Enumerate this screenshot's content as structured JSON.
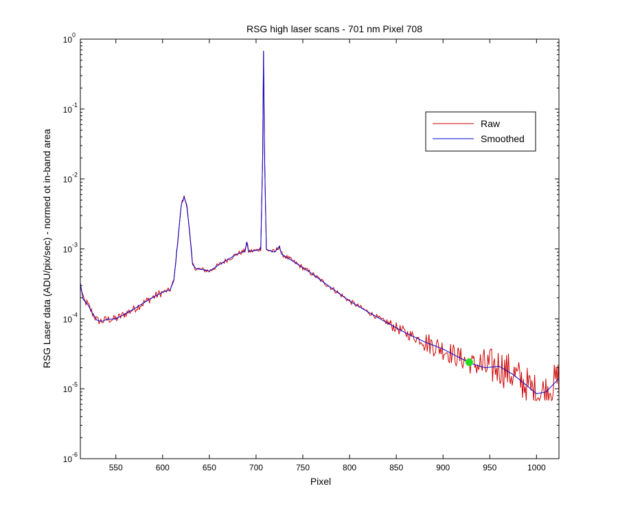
{
  "chart_data": {
    "type": "line",
    "title": "RSG high laser scans  - 701 nm    Pixel 708",
    "xlabel": "Pixel",
    "ylabel": "RSG Laser data (ADU/pix/sec) - normed ot in-band area",
    "xlim": [
      512,
      1024
    ],
    "ylim": [
      1e-06,
      1
    ],
    "yscale": "log",
    "xticks": [
      550,
      600,
      650,
      700,
      750,
      800,
      850,
      900,
      950,
      1000
    ],
    "yticks": [
      {
        "value": 1e-06,
        "base": "10",
        "exp": "-6"
      },
      {
        "value": 1e-05,
        "base": "10",
        "exp": "-5"
      },
      {
        "value": 0.0001,
        "base": "10",
        "exp": "-4"
      },
      {
        "value": 0.001,
        "base": "10",
        "exp": "-3"
      },
      {
        "value": 0.01,
        "base": "10",
        "exp": "-2"
      },
      {
        "value": 0.1,
        "base": "10",
        "exp": "-1"
      },
      {
        "value": 1,
        "base": "10",
        "exp": "0"
      }
    ],
    "grid": false,
    "legend_position": "top-right",
    "series": [
      {
        "name": "Raw",
        "color": "#cc0000",
        "noise": true,
        "points": [
          [
            512,
            0.00032
          ],
          [
            515,
            0.00019
          ],
          [
            520,
            0.00016
          ],
          [
            525,
            0.00012
          ],
          [
            530,
            9.5e-05
          ],
          [
            535,
            9.2e-05
          ],
          [
            540,
            9.8e-05
          ],
          [
            550,
            0.0001
          ],
          [
            560,
            0.000118
          ],
          [
            570,
            0.00014
          ],
          [
            580,
            0.00017
          ],
          [
            590,
            0.000205
          ],
          [
            600,
            0.00024
          ],
          [
            608,
            0.00026
          ],
          [
            612,
            0.00035
          ],
          [
            616,
            0.0012
          ],
          [
            620,
            0.0043
          ],
          [
            623,
            0.0055
          ],
          [
            626,
            0.0042
          ],
          [
            630,
            0.0012
          ],
          [
            632,
            0.0006
          ],
          [
            636,
            0.00052
          ],
          [
            645,
            0.0005
          ],
          [
            650,
            0.00048
          ],
          [
            660,
            0.00059
          ],
          [
            670,
            0.00071
          ],
          [
            680,
            0.00085
          ],
          [
            688,
            0.00093
          ],
          [
            690,
            0.00125
          ],
          [
            692,
            0.00092
          ],
          [
            700,
            0.00095
          ],
          [
            705,
            0.001
          ],
          [
            707,
            0.02
          ],
          [
            708,
            0.68
          ],
          [
            709,
            0.025
          ],
          [
            711,
            0.00098
          ],
          [
            720,
            0.0009
          ],
          [
            725,
            0.0011
          ],
          [
            727,
            0.00085
          ],
          [
            740,
            0.00066
          ],
          [
            760,
            0.00044
          ],
          [
            780,
            0.00028
          ],
          [
            800,
            0.00018
          ],
          [
            820,
            0.000125
          ],
          [
            840,
            8.8e-05
          ],
          [
            860,
            6.3e-05
          ],
          [
            880,
            4.7e-05
          ],
          [
            900,
            3.7e-05
          ],
          [
            915,
            2.9e-05
          ],
          [
            930,
            2.3e-05
          ],
          [
            945,
            2e-05
          ],
          [
            960,
            2.1e-05
          ],
          [
            975,
            1.6e-05
          ],
          [
            990,
            1.1e-05
          ],
          [
            1000,
            8.5e-06
          ],
          [
            1010,
            9e-06
          ],
          [
            1024,
            1.4e-05
          ]
        ]
      },
      {
        "name": "Smoothed",
        "color": "#0000cc",
        "noise": false,
        "points": [
          [
            512,
            0.00032
          ],
          [
            515,
            0.00019
          ],
          [
            520,
            0.00016
          ],
          [
            525,
            0.00012
          ],
          [
            530,
            9.5e-05
          ],
          [
            535,
            9.2e-05
          ],
          [
            540,
            9.8e-05
          ],
          [
            550,
            0.0001
          ],
          [
            560,
            0.000118
          ],
          [
            570,
            0.00014
          ],
          [
            580,
            0.00017
          ],
          [
            590,
            0.000205
          ],
          [
            600,
            0.00024
          ],
          [
            608,
            0.00026
          ],
          [
            612,
            0.00035
          ],
          [
            616,
            0.0012
          ],
          [
            620,
            0.0043
          ],
          [
            623,
            0.0055
          ],
          [
            626,
            0.0042
          ],
          [
            630,
            0.0012
          ],
          [
            632,
            0.0006
          ],
          [
            636,
            0.00052
          ],
          [
            645,
            0.0005
          ],
          [
            650,
            0.00048
          ],
          [
            660,
            0.00059
          ],
          [
            670,
            0.00071
          ],
          [
            680,
            0.00085
          ],
          [
            688,
            0.00093
          ],
          [
            690,
            0.00125
          ],
          [
            692,
            0.00092
          ],
          [
            700,
            0.00095
          ],
          [
            705,
            0.001
          ],
          [
            707,
            0.02
          ],
          [
            708,
            0.68
          ],
          [
            709,
            0.025
          ],
          [
            711,
            0.00098
          ],
          [
            720,
            0.0009
          ],
          [
            725,
            0.0011
          ],
          [
            727,
            0.00085
          ],
          [
            740,
            0.00066
          ],
          [
            760,
            0.00044
          ],
          [
            780,
            0.00028
          ],
          [
            800,
            0.00018
          ],
          [
            820,
            0.000125
          ],
          [
            840,
            8.8e-05
          ],
          [
            860,
            6.3e-05
          ],
          [
            880,
            4.7e-05
          ],
          [
            900,
            3.7e-05
          ],
          [
            915,
            2.9e-05
          ],
          [
            930,
            2.3e-05
          ],
          [
            945,
            2e-05
          ],
          [
            960,
            2.1e-05
          ],
          [
            975,
            1.6e-05
          ],
          [
            990,
            1.1e-05
          ],
          [
            1000,
            8.5e-06
          ],
          [
            1010,
            9e-06
          ],
          [
            1024,
            1.4e-05
          ]
        ]
      }
    ],
    "marker": {
      "x": 928,
      "y": 2.4e-05,
      "color": "#22dd22"
    }
  }
}
